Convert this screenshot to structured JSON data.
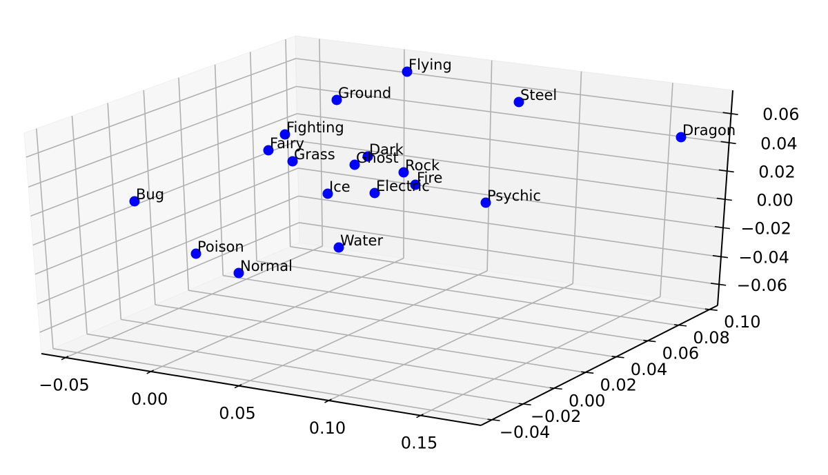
{
  "chart_data": {
    "type": "scatter",
    "subtype": "3d-scatter",
    "title": "",
    "xlabel": "",
    "ylabel": "",
    "zlabel": "",
    "grid": true,
    "marker_color": "#0000ff",
    "x_ticks": [
      "−0.05",
      "0.00",
      "0.05",
      "0.10",
      "0.15"
    ],
    "y_ticks": [
      "−0.04",
      "−0.02",
      "0.00",
      "0.02",
      "0.04",
      "0.06",
      "0.08",
      "0.10"
    ],
    "z_ticks": [
      "0.06",
      "0.04",
      "0.02",
      "0.00",
      "−0.02",
      "−0.04",
      "−0.06"
    ],
    "xlim": [
      -0.065,
      0.175
    ],
    "ylim": [
      -0.05,
      0.11
    ],
    "zlim": [
      -0.075,
      0.075
    ],
    "points": [
      {
        "label": "Flying",
        "screen": [
          590,
          104
        ]
      },
      {
        "label": "Ground",
        "screen": [
          488,
          145
        ]
      },
      {
        "label": "Steel",
        "screen": [
          752,
          148
        ]
      },
      {
        "label": "Dragon",
        "screen": [
          987,
          199
        ]
      },
      {
        "label": "Fighting",
        "screen": [
          413,
          195
        ]
      },
      {
        "label": "Fairy",
        "screen": [
          389,
          218
        ]
      },
      {
        "label": "Grass",
        "screen": [
          424,
          234
        ]
      },
      {
        "label": "Dark",
        "screen": [
          533,
          227
        ]
      },
      {
        "label": "Ghost",
        "screen": [
          514,
          239
        ]
      },
      {
        "label": "Rock",
        "screen": [
          585,
          250
        ]
      },
      {
        "label": "Fire",
        "screen": [
          602,
          268
        ]
      },
      {
        "label": "Electric",
        "screen": [
          543,
          280
        ]
      },
      {
        "label": "Ice",
        "screen": [
          475,
          281
        ]
      },
      {
        "label": "Psychic",
        "screen": [
          704,
          294
        ]
      },
      {
        "label": "Bug",
        "screen": [
          195,
          292
        ]
      },
      {
        "label": "Water",
        "screen": [
          491,
          359
        ]
      },
      {
        "label": "Poison",
        "screen": [
          284,
          368
        ]
      },
      {
        "label": "Normal",
        "screen": [
          346,
          396
        ]
      }
    ]
  }
}
